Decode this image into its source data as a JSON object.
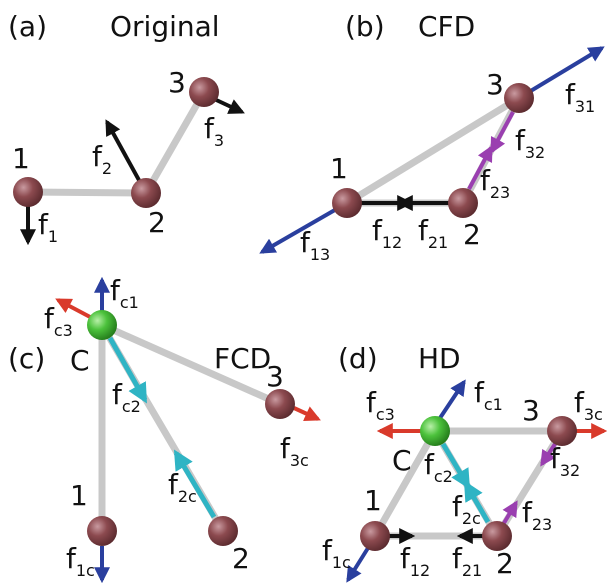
{
  "panels": {
    "a": {
      "tag": "(a)",
      "title": "Original",
      "nodes": [
        "1",
        "2",
        "3"
      ],
      "forces": [
        {
          "base": "f",
          "sub": "1"
        },
        {
          "base": "f",
          "sub": "2"
        },
        {
          "base": "f",
          "sub": "3"
        }
      ]
    },
    "b": {
      "tag": "(b)",
      "title": "CFD",
      "nodes": [
        "1",
        "2",
        "3"
      ],
      "forces": [
        {
          "base": "f",
          "sub": "12"
        },
        {
          "base": "f",
          "sub": "21"
        },
        {
          "base": "f",
          "sub": "13"
        },
        {
          "base": "f",
          "sub": "31"
        },
        {
          "base": "f",
          "sub": "23"
        },
        {
          "base": "f",
          "sub": "32"
        }
      ]
    },
    "c": {
      "tag": "(c)",
      "title": "FCD",
      "nodes": [
        "C",
        "1",
        "2",
        "3"
      ],
      "forces": [
        {
          "base": "f",
          "sub": "c1"
        },
        {
          "base": "f",
          "sub": "c2"
        },
        {
          "base": "f",
          "sub": "c3"
        },
        {
          "base": "f",
          "sub": "1c"
        },
        {
          "base": "f",
          "sub": "2c"
        },
        {
          "base": "f",
          "sub": "3c"
        }
      ]
    },
    "d": {
      "tag": "(d)",
      "title": "HD",
      "nodes": [
        "C",
        "1",
        "2",
        "3"
      ],
      "forces": [
        {
          "base": "f",
          "sub": "c1"
        },
        {
          "base": "f",
          "sub": "c2"
        },
        {
          "base": "f",
          "sub": "c3"
        },
        {
          "base": "f",
          "sub": "1c"
        },
        {
          "base": "f",
          "sub": "2c"
        },
        {
          "base": "f",
          "sub": "3c"
        },
        {
          "base": "f",
          "sub": "12"
        },
        {
          "base": "f",
          "sub": "21"
        },
        {
          "base": "f",
          "sub": "23"
        },
        {
          "base": "f",
          "sub": "32"
        }
      ]
    }
  },
  "colors": {
    "node": "#8c4a4f",
    "center_node": "#4cc23c",
    "bond": "#c8c8c8",
    "black": "#111111",
    "blue": "#2a3f9e",
    "purple": "#9a3fb0",
    "red": "#d93a2b",
    "cyan": "#2fb4c4",
    "label_blue": "#2a3f9e",
    "label_purple": "#8e3aa5",
    "label_red": "#d62020",
    "label_cyan": "#1fa4d9"
  }
}
